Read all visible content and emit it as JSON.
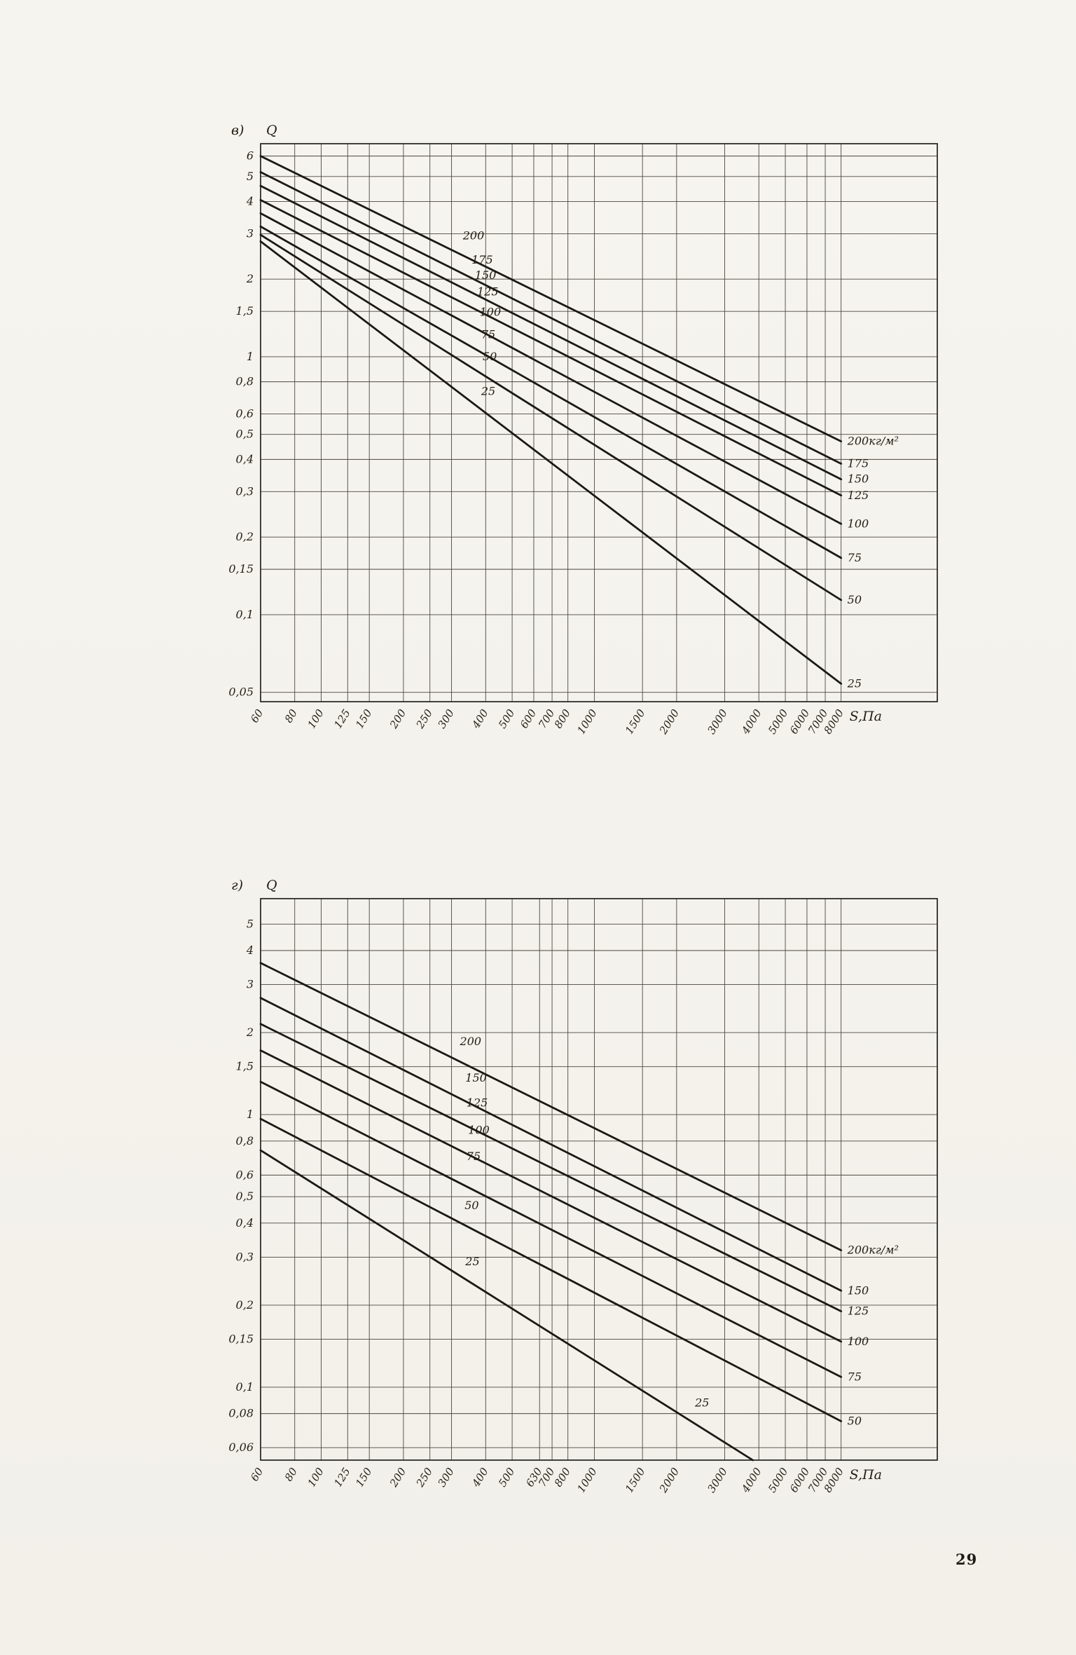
{
  "page": {
    "number": "29",
    "paper_color": "#f5f3ed",
    "ink_color": "#1d1c17"
  },
  "chart_data": [
    {
      "id": "chart-top",
      "type": "line",
      "panel_label": "в)",
      "ylabel": "Q",
      "xlabel": "S,Па",
      "x_scale": "log",
      "y_scale": "log",
      "grid": true,
      "legend_position": "right-edge-labels",
      "xlim": [
        60,
        18000
      ],
      "ylim": [
        0.046,
        6.7
      ],
      "x_ticks": [
        60,
        80,
        100,
        125,
        150,
        200,
        250,
        300,
        400,
        500,
        600,
        700,
        800,
        1000,
        1500,
        2000,
        3000,
        4000,
        5000,
        6000,
        7000,
        8000
      ],
      "x_tick_labels": [
        "60",
        "80",
        "100",
        "125",
        "150",
        "200",
        "250",
        "300",
        "400",
        "500",
        "600",
        "700",
        "800",
        "1000",
        "1500",
        "2000",
        "3000",
        "4000",
        "5000",
        "6000",
        "7000",
        "8000"
      ],
      "y_ticks": [
        6,
        5,
        4,
        3,
        2,
        1.5,
        1,
        0.8,
        0.6,
        0.5,
        0.4,
        0.3,
        0.2,
        0.15,
        0.1,
        0.05
      ],
      "y_tick_labels": [
        "6",
        "5",
        "4",
        "3",
        "2",
        "1,5",
        "1",
        "0,8",
        "0,6",
        "0,5",
        "0,4",
        "0,3",
        "0,2",
        "0,15",
        "0,1",
        "0,05"
      ],
      "series": [
        {
          "name": "200",
          "points": [
            [
              60,
              6.0
            ],
            [
              8000,
              0.47
            ]
          ],
          "end_label": "200кг/м²"
        },
        {
          "name": "175",
          "points": [
            [
              60,
              5.2
            ],
            [
              8000,
              0.385
            ]
          ],
          "end_label": "175"
        },
        {
          "name": "150",
          "points": [
            [
              60,
              4.6
            ],
            [
              8000,
              0.335
            ]
          ],
          "end_label": "150"
        },
        {
          "name": "125",
          "points": [
            [
              60,
              4.05
            ],
            [
              8000,
              0.29
            ]
          ],
          "end_label": "125"
        },
        {
          "name": "100",
          "points": [
            [
              60,
              3.6
            ],
            [
              8000,
              0.225
            ]
          ],
          "end_label": "100"
        },
        {
          "name": "75",
          "points": [
            [
              60,
              3.2
            ],
            [
              8000,
              0.166
            ]
          ],
          "end_label": "75"
        },
        {
          "name": "50",
          "points": [
            [
              60,
              2.97
            ],
            [
              8000,
              0.114
            ]
          ],
          "end_label": "50"
        },
        {
          "name": "25",
          "points": [
            [
              60,
              2.8
            ],
            [
              8000,
              0.054
            ]
          ],
          "end_label": "25"
        }
      ],
      "line_labels": [
        {
          "text": "200",
          "x": 330,
          "y": 2.85
        },
        {
          "text": "175",
          "x": 355,
          "y": 2.3
        },
        {
          "text": "150",
          "x": 365,
          "y": 2.0
        },
        {
          "text": "125",
          "x": 372,
          "y": 1.73
        },
        {
          "text": "100",
          "x": 380,
          "y": 1.44
        },
        {
          "text": "75",
          "x": 385,
          "y": 1.18
        },
        {
          "text": "50",
          "x": 390,
          "y": 0.97
        },
        {
          "text": "25",
          "x": 385,
          "y": 0.71
        }
      ]
    },
    {
      "id": "chart-bottom",
      "type": "line",
      "panel_label": "г)",
      "ylabel": "Q",
      "xlabel": "S,Па",
      "x_scale": "log",
      "y_scale": "log",
      "grid": true,
      "legend_position": "right-edge-labels",
      "xlim": [
        60,
        18000
      ],
      "ylim": [
        0.054,
        6.2
      ],
      "x_ticks": [
        60,
        80,
        100,
        125,
        150,
        200,
        250,
        300,
        400,
        500,
        630,
        700,
        800,
        1000,
        1500,
        2000,
        3000,
        4000,
        5000,
        6000,
        7000,
        8000
      ],
      "x_tick_labels": [
        "60",
        "80",
        "100",
        "125",
        "150",
        "200",
        "250",
        "300",
        "400",
        "500",
        "630",
        "700",
        "800",
        "1000",
        "1500",
        "2000",
        "3000",
        "4000",
        "5000",
        "6000",
        "7000",
        "8000"
      ],
      "y_ticks": [
        5,
        4,
        3,
        2,
        1.5,
        1,
        0.8,
        0.6,
        0.5,
        0.4,
        0.3,
        0.2,
        0.15,
        0.1,
        0.08,
        0.06
      ],
      "y_tick_labels": [
        "5",
        "4",
        "3",
        "2",
        "1,5",
        "1",
        "0,8",
        "0,6",
        "0,5",
        "0,4",
        "0,3",
        "0,2",
        "0,15",
        "0,1",
        "0,08",
        "0,06"
      ],
      "series": [
        {
          "name": "200",
          "points": [
            [
              60,
              3.6
            ],
            [
              8000,
              0.318
            ]
          ],
          "end_label": "200кг/м²"
        },
        {
          "name": "150",
          "points": [
            [
              60,
              2.68
            ],
            [
              8000,
              0.226
            ]
          ],
          "end_label": "150"
        },
        {
          "name": "125",
          "points": [
            [
              60,
              2.15
            ],
            [
              8000,
              0.19
            ]
          ],
          "end_label": "125"
        },
        {
          "name": "100",
          "points": [
            [
              60,
              1.72
            ],
            [
              8000,
              0.147
            ]
          ],
          "end_label": "100"
        },
        {
          "name": "75",
          "points": [
            [
              60,
              1.32
            ],
            [
              8000,
              0.109
            ]
          ],
          "end_label": "75"
        },
        {
          "name": "50",
          "points": [
            [
              60,
              0.965
            ],
            [
              8000,
              0.075
            ]
          ],
          "end_label": "50"
        },
        {
          "name": "25",
          "points": [
            [
              60,
              0.74
            ],
            [
              3800,
              0.054
            ]
          ],
          "end_label": ""
        }
      ],
      "line_labels": [
        {
          "text": "200",
          "x": 322,
          "y": 1.8
        },
        {
          "text": "150",
          "x": 337,
          "y": 1.32
        },
        {
          "text": "125",
          "x": 340,
          "y": 1.07
        },
        {
          "text": "100",
          "x": 345,
          "y": 0.85
        },
        {
          "text": "75",
          "x": 340,
          "y": 0.68
        },
        {
          "text": "50",
          "x": 335,
          "y": 0.45
        },
        {
          "text": "25",
          "x": 337,
          "y": 0.28
        },
        {
          "text": "25",
          "x": 2335,
          "y": 0.085
        }
      ]
    }
  ]
}
